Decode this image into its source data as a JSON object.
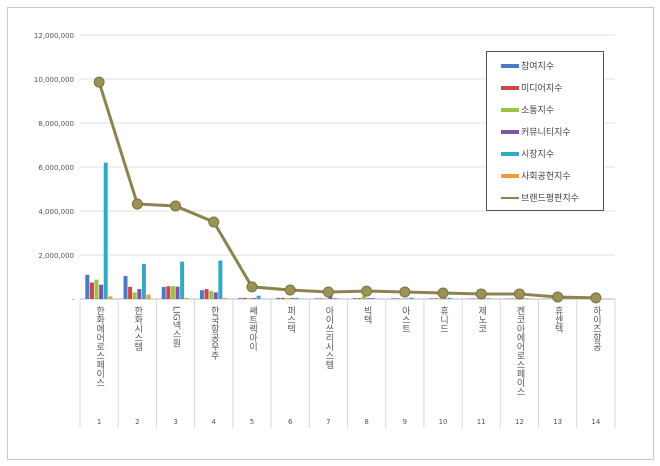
{
  "chart_data": {
    "type": "bar",
    "title": "",
    "xlabel": "",
    "ylabel": "",
    "ylim": [
      0,
      12000000
    ],
    "yticks": [
      "-",
      "2,000,000",
      "4,000,000",
      "6,000,000",
      "8,000,000",
      "10,000,000",
      "12,000,000"
    ],
    "grid": true,
    "legend_position": "top-right",
    "categories": [
      "한화에어로스페이스",
      "한화시스템",
      "LIG넥스원",
      "한국항공우주",
      "쎄트렉아이",
      "퍼스텍",
      "아이쓰리시스템",
      "빅텍",
      "아스트",
      "휴니드",
      "제노코",
      "켄코아에어로스페이스",
      "휴센텍",
      "하이즈항공"
    ],
    "ranks": [
      "1",
      "2",
      "3",
      "4",
      "5",
      "6",
      "7",
      "8",
      "9",
      "10",
      "11",
      "12",
      "13",
      "14"
    ],
    "series": [
      {
        "name": "참여지수",
        "color": "#4a7bc4",
        "type": "bar",
        "values": [
          1100000,
          1050000,
          550000,
          400000,
          40000,
          50000,
          30000,
          40000,
          30000,
          30000,
          20000,
          20000,
          10000,
          10000
        ]
      },
      {
        "name": "미디어지수",
        "color": "#c84848",
        "type": "bar",
        "values": [
          750000,
          550000,
          580000,
          450000,
          50000,
          50000,
          30000,
          40000,
          30000,
          30000,
          20000,
          20000,
          10000,
          10000
        ]
      },
      {
        "name": "소통지수",
        "color": "#9cc24a",
        "type": "bar",
        "values": [
          880000,
          300000,
          580000,
          370000,
          40000,
          40000,
          30000,
          150000,
          30000,
          30000,
          20000,
          20000,
          10000,
          10000
        ]
      },
      {
        "name": "커뮤니티지수",
        "color": "#7b55a8",
        "type": "bar",
        "values": [
          650000,
          450000,
          560000,
          300000,
          40000,
          40000,
          200000,
          40000,
          20000,
          20000,
          20000,
          20000,
          10000,
          10000
        ]
      },
      {
        "name": "시장지수",
        "color": "#35a8c4",
        "type": "bar",
        "values": [
          6200000,
          1600000,
          1700000,
          1750000,
          150000,
          50000,
          40000,
          50000,
          60000,
          50000,
          30000,
          30000,
          20000,
          10000
        ]
      },
      {
        "name": "사회공헌지수",
        "color": "#f09a3a",
        "type": "bar",
        "values": [
          120000,
          200000,
          50000,
          50000,
          10000,
          10000,
          10000,
          10000,
          10000,
          10000,
          10000,
          10000,
          10000,
          10000
        ]
      },
      {
        "name": "브랜드평판지수",
        "color": "#8c8450",
        "type": "line",
        "values": [
          9860000,
          4320000,
          4230000,
          3500000,
          550000,
          410000,
          320000,
          360000,
          320000,
          270000,
          230000,
          230000,
          90000,
          50000
        ]
      }
    ]
  }
}
